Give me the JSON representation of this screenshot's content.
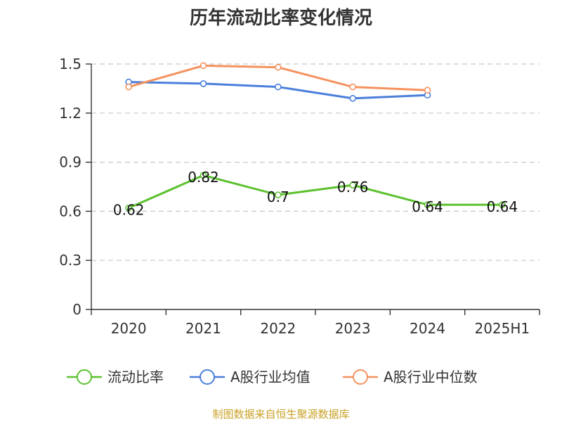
{
  "chart_data": {
    "type": "line",
    "title": "历年流动比率变化情况",
    "categories": [
      "2020",
      "2021",
      "2022",
      "2023",
      "2024",
      "2025H1"
    ],
    "ylim": [
      0,
      1.5
    ],
    "yticks": [
      "0",
      "0.3",
      "0.6",
      "0.9",
      "1.2",
      "1.5"
    ],
    "grid": true,
    "legend_position": "bottom",
    "series": [
      {
        "name": "流动比率",
        "color": "#5cc12f",
        "values": [
          0.62,
          0.82,
          0.7,
          0.76,
          0.64,
          0.64
        ],
        "labels": [
          "0.62",
          "0.82",
          "0.7",
          "0.76",
          "0.64",
          "0.64"
        ]
      },
      {
        "name": "A股行业均值",
        "color": "#4a7fdb",
        "values": [
          1.39,
          1.38,
          1.36,
          1.29,
          1.31,
          null
        ]
      },
      {
        "name": "A股行业中位数",
        "color": "#f5925e",
        "values": [
          1.36,
          1.49,
          1.48,
          1.36,
          1.34,
          null
        ]
      }
    ],
    "source": "制图数据来自恒生聚源数据库"
  }
}
